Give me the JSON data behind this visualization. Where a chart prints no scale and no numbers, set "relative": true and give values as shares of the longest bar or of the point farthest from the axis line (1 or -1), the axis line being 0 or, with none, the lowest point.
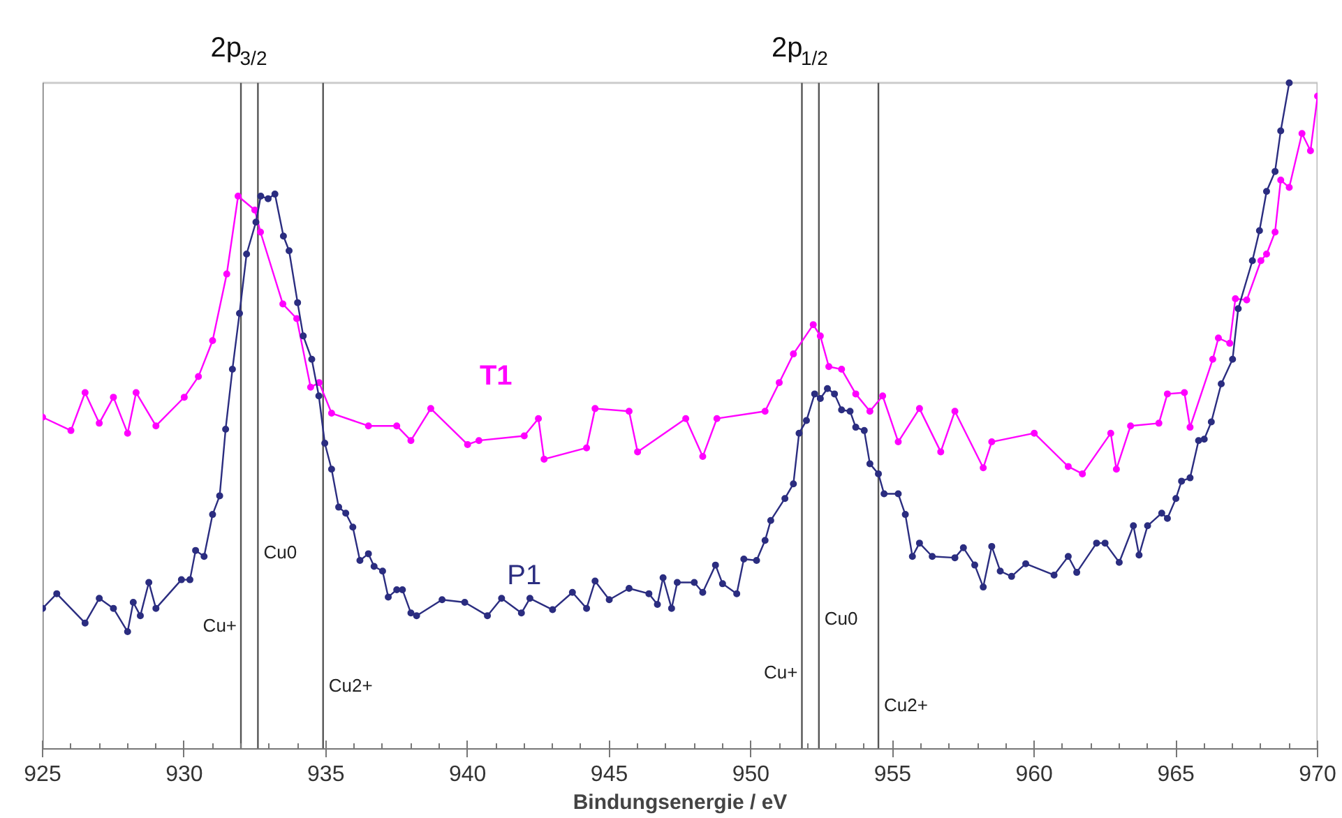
{
  "chart_data": {
    "type": "line",
    "relative": true,
    "xlabel": "Bindungsenergie / eV",
    "xlim": [
      925,
      970
    ],
    "xticks": [
      925,
      930,
      935,
      940,
      945,
      950,
      955,
      960,
      965,
      970
    ],
    "marker": "circle",
    "grid": false,
    "legend": false,
    "annotations": [
      "2p$_{3/2}$",
      "2p$_{1/2}$"
    ],
    "ref_lines": [
      {
        "axis": "x",
        "value": 932.0,
        "label": "Cu+",
        "color": "#555555"
      },
      {
        "axis": "x",
        "value": 932.6,
        "label": "Cu0",
        "color": "#555555"
      },
      {
        "axis": "x",
        "value": 934.9,
        "label": "Cu2+",
        "color": "#555555"
      },
      {
        "axis": "x",
        "value": 951.8,
        "label": "Cu+",
        "color": "#555555"
      },
      {
        "axis": "x",
        "value": 952.4,
        "label": "Cu0",
        "color": "#555555"
      },
      {
        "axis": "x",
        "value": 954.5,
        "label": "Cu2+",
        "color": "#555555"
      }
    ],
    "series": [
      {
        "name": "T1",
        "color": "#ff00ff",
        "x": [
          925.0,
          926.0,
          926.5,
          927.0,
          927.5,
          928.0,
          928.3,
          929.0,
          930.0,
          930.5,
          931.0,
          931.5,
          931.9,
          932.49,
          932.69,
          933.48,
          933.97,
          934.46,
          934.76,
          935.2,
          936.5,
          937.5,
          938.0,
          938.7,
          940.0,
          940.4,
          942.0,
          942.5,
          942.7,
          944.2,
          944.5,
          945.7,
          946.0,
          947.7,
          948.3,
          948.8,
          950.5,
          951.0,
          951.5,
          952.2,
          952.45,
          952.75,
          953.2,
          953.7,
          954.2,
          954.65,
          955.2,
          955.95,
          956.7,
          957.2,
          958.2,
          958.5,
          960.0,
          961.2,
          961.7,
          962.7,
          962.9,
          963.4,
          964.4,
          964.7,
          965.3,
          965.5,
          966.3,
          966.5,
          966.9,
          967.1,
          967.5,
          968.0,
          968.2,
          968.5,
          968.7,
          969.0,
          969.45,
          969.75,
          970.0
        ],
        "values": [
          0.498,
          0.478,
          0.535,
          0.489,
          0.528,
          0.474,
          0.535,
          0.485,
          0.528,
          0.559,
          0.613,
          0.713,
          0.83,
          0.809,
          0.776,
          0.668,
          0.646,
          0.543,
          0.55,
          0.504,
          0.485,
          0.485,
          0.463,
          0.511,
          0.457,
          0.463,
          0.47,
          0.496,
          0.435,
          0.452,
          0.511,
          0.507,
          0.446,
          0.496,
          0.439,
          0.496,
          0.507,
          0.55,
          0.593,
          0.637,
          0.62,
          0.574,
          0.57,
          0.533,
          0.507,
          0.53,
          0.461,
          0.511,
          0.446,
          0.507,
          0.422,
          0.461,
          0.474,
          0.424,
          0.413,
          0.474,
          0.42,
          0.485,
          0.489,
          0.533,
          0.535,
          0.483,
          0.585,
          0.617,
          0.609,
          0.676,
          0.674,
          0.733,
          0.743,
          0.776,
          0.854,
          0.843,
          0.924,
          0.898,
          0.98
        ]
      },
      {
        "name": "P1",
        "color": "#2b2d80",
        "x": [
          925.0,
          925.5,
          926.5,
          927.0,
          927.5,
          928.0,
          928.2,
          928.45,
          928.75,
          929.0,
          929.9,
          930.2,
          930.4,
          930.7,
          931.0,
          931.25,
          931.46,
          931.7,
          931.95,
          932.2,
          932.53,
          932.7,
          932.96,
          933.2,
          933.5,
          933.7,
          934.0,
          934.2,
          934.5,
          934.75,
          934.96,
          935.2,
          935.45,
          935.7,
          935.95,
          936.2,
          936.5,
          936.7,
          937.0,
          937.2,
          937.5,
          937.7,
          938.0,
          938.2,
          939.1,
          939.9,
          940.7,
          941.2,
          941.9,
          942.2,
          943.0,
          943.7,
          944.2,
          944.5,
          945.0,
          945.7,
          946.4,
          946.7,
          946.9,
          947.2,
          947.4,
          948.0,
          948.3,
          948.75,
          949.0,
          949.5,
          949.75,
          950.2,
          950.5,
          950.7,
          951.2,
          951.5,
          951.7,
          951.96,
          952.25,
          952.45,
          952.7,
          952.95,
          953.2,
          953.5,
          953.7,
          954.0,
          954.2,
          954.5,
          954.7,
          955.2,
          955.45,
          955.7,
          955.95,
          956.4,
          957.2,
          957.5,
          957.9,
          958.2,
          958.5,
          958.8,
          959.2,
          959.7,
          960.7,
          961.2,
          961.5,
          962.2,
          962.5,
          963.0,
          963.5,
          963.7,
          964.0,
          964.5,
          964.7,
          965.0,
          965.2,
          965.5,
          965.8,
          966.0,
          966.25,
          966.6,
          967.0,
          967.2,
          967.7,
          967.95,
          968.2,
          968.5,
          968.7,
          969.0
        ],
        "values": [
          0.211,
          0.233,
          0.189,
          0.226,
          0.211,
          0.176,
          0.22,
          0.2,
          0.25,
          0.211,
          0.254,
          0.254,
          0.298,
          0.289,
          0.352,
          0.38,
          0.48,
          0.57,
          0.654,
          0.743,
          0.791,
          0.83,
          0.826,
          0.833,
          0.77,
          0.748,
          0.67,
          0.62,
          0.585,
          0.53,
          0.459,
          0.42,
          0.363,
          0.354,
          0.333,
          0.283,
          0.293,
          0.274,
          0.267,
          0.228,
          0.239,
          0.239,
          0.204,
          0.2,
          0.224,
          0.22,
          0.2,
          0.226,
          0.204,
          0.226,
          0.209,
          0.235,
          0.211,
          0.252,
          0.224,
          0.241,
          0.233,
          0.217,
          0.257,
          0.211,
          0.25,
          0.25,
          0.235,
          0.276,
          0.248,
          0.233,
          0.285,
          0.283,
          0.313,
          0.343,
          0.376,
          0.398,
          0.474,
          0.493,
          0.533,
          0.526,
          0.541,
          0.533,
          0.509,
          0.507,
          0.483,
          0.478,
          0.428,
          0.413,
          0.383,
          0.383,
          0.352,
          0.289,
          0.309,
          0.289,
          0.287,
          0.302,
          0.276,
          0.243,
          0.304,
          0.267,
          0.259,
          0.278,
          0.261,
          0.289,
          0.265,
          0.309,
          0.309,
          0.28,
          0.335,
          0.291,
          0.335,
          0.354,
          0.346,
          0.376,
          0.402,
          0.407,
          0.463,
          0.465,
          0.491,
          0.548,
          0.585,
          0.661,
          0.733,
          0.778,
          0.837,
          0.867,
          0.928,
          1.0
        ]
      }
    ]
  }
}
